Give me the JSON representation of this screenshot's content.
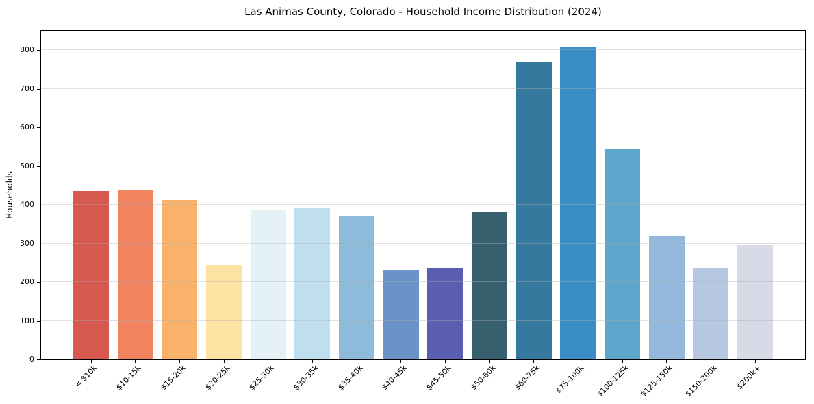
{
  "chart_data": {
    "type": "bar",
    "title": "Las Animas County, Colorado - Household Income Distribution (2024)",
    "xlabel": "",
    "ylabel": "Households",
    "categories": [
      "< $10k",
      "$10-15k",
      "$15-20k",
      "$20-25k",
      "$25-30k",
      "$30-35k",
      "$35-40k",
      "$40-45k",
      "$45-50k",
      "$50-60k",
      "$60-75k",
      "$75-100k",
      "$100-125k",
      "$125-150k",
      "$150-200k",
      "$200k+"
    ],
    "values": [
      435,
      438,
      413,
      245,
      386,
      391,
      371,
      230,
      235,
      383,
      770,
      810,
      544,
      320,
      238,
      295
    ],
    "bar_colors": [
      "#d6584e",
      "#f1845f",
      "#f9b269",
      "#fce3a1",
      "#e4f1f7",
      "#bfdfee",
      "#8fbbdb",
      "#6b93c8",
      "#5a5eb0",
      "#37606f",
      "#36799e",
      "#3a8dc5",
      "#5ea7cc",
      "#95b9dc",
      "#b6c8e1",
      "#d7dae7"
    ],
    "yticks": [
      0,
      100,
      200,
      300,
      400,
      500,
      600,
      700,
      800
    ],
    "ylim": [
      0,
      850
    ],
    "grid": "horizontal",
    "grid_on_top_of_bars": true,
    "legend": null,
    "x_tick_rotation_deg": 45,
    "plot_background": "#ffffff",
    "page_background": "#ffffff",
    "axis_color": "#000000",
    "gridline_color": "rgba(176,176,176,0.4)",
    "text_color": "#000000"
  }
}
